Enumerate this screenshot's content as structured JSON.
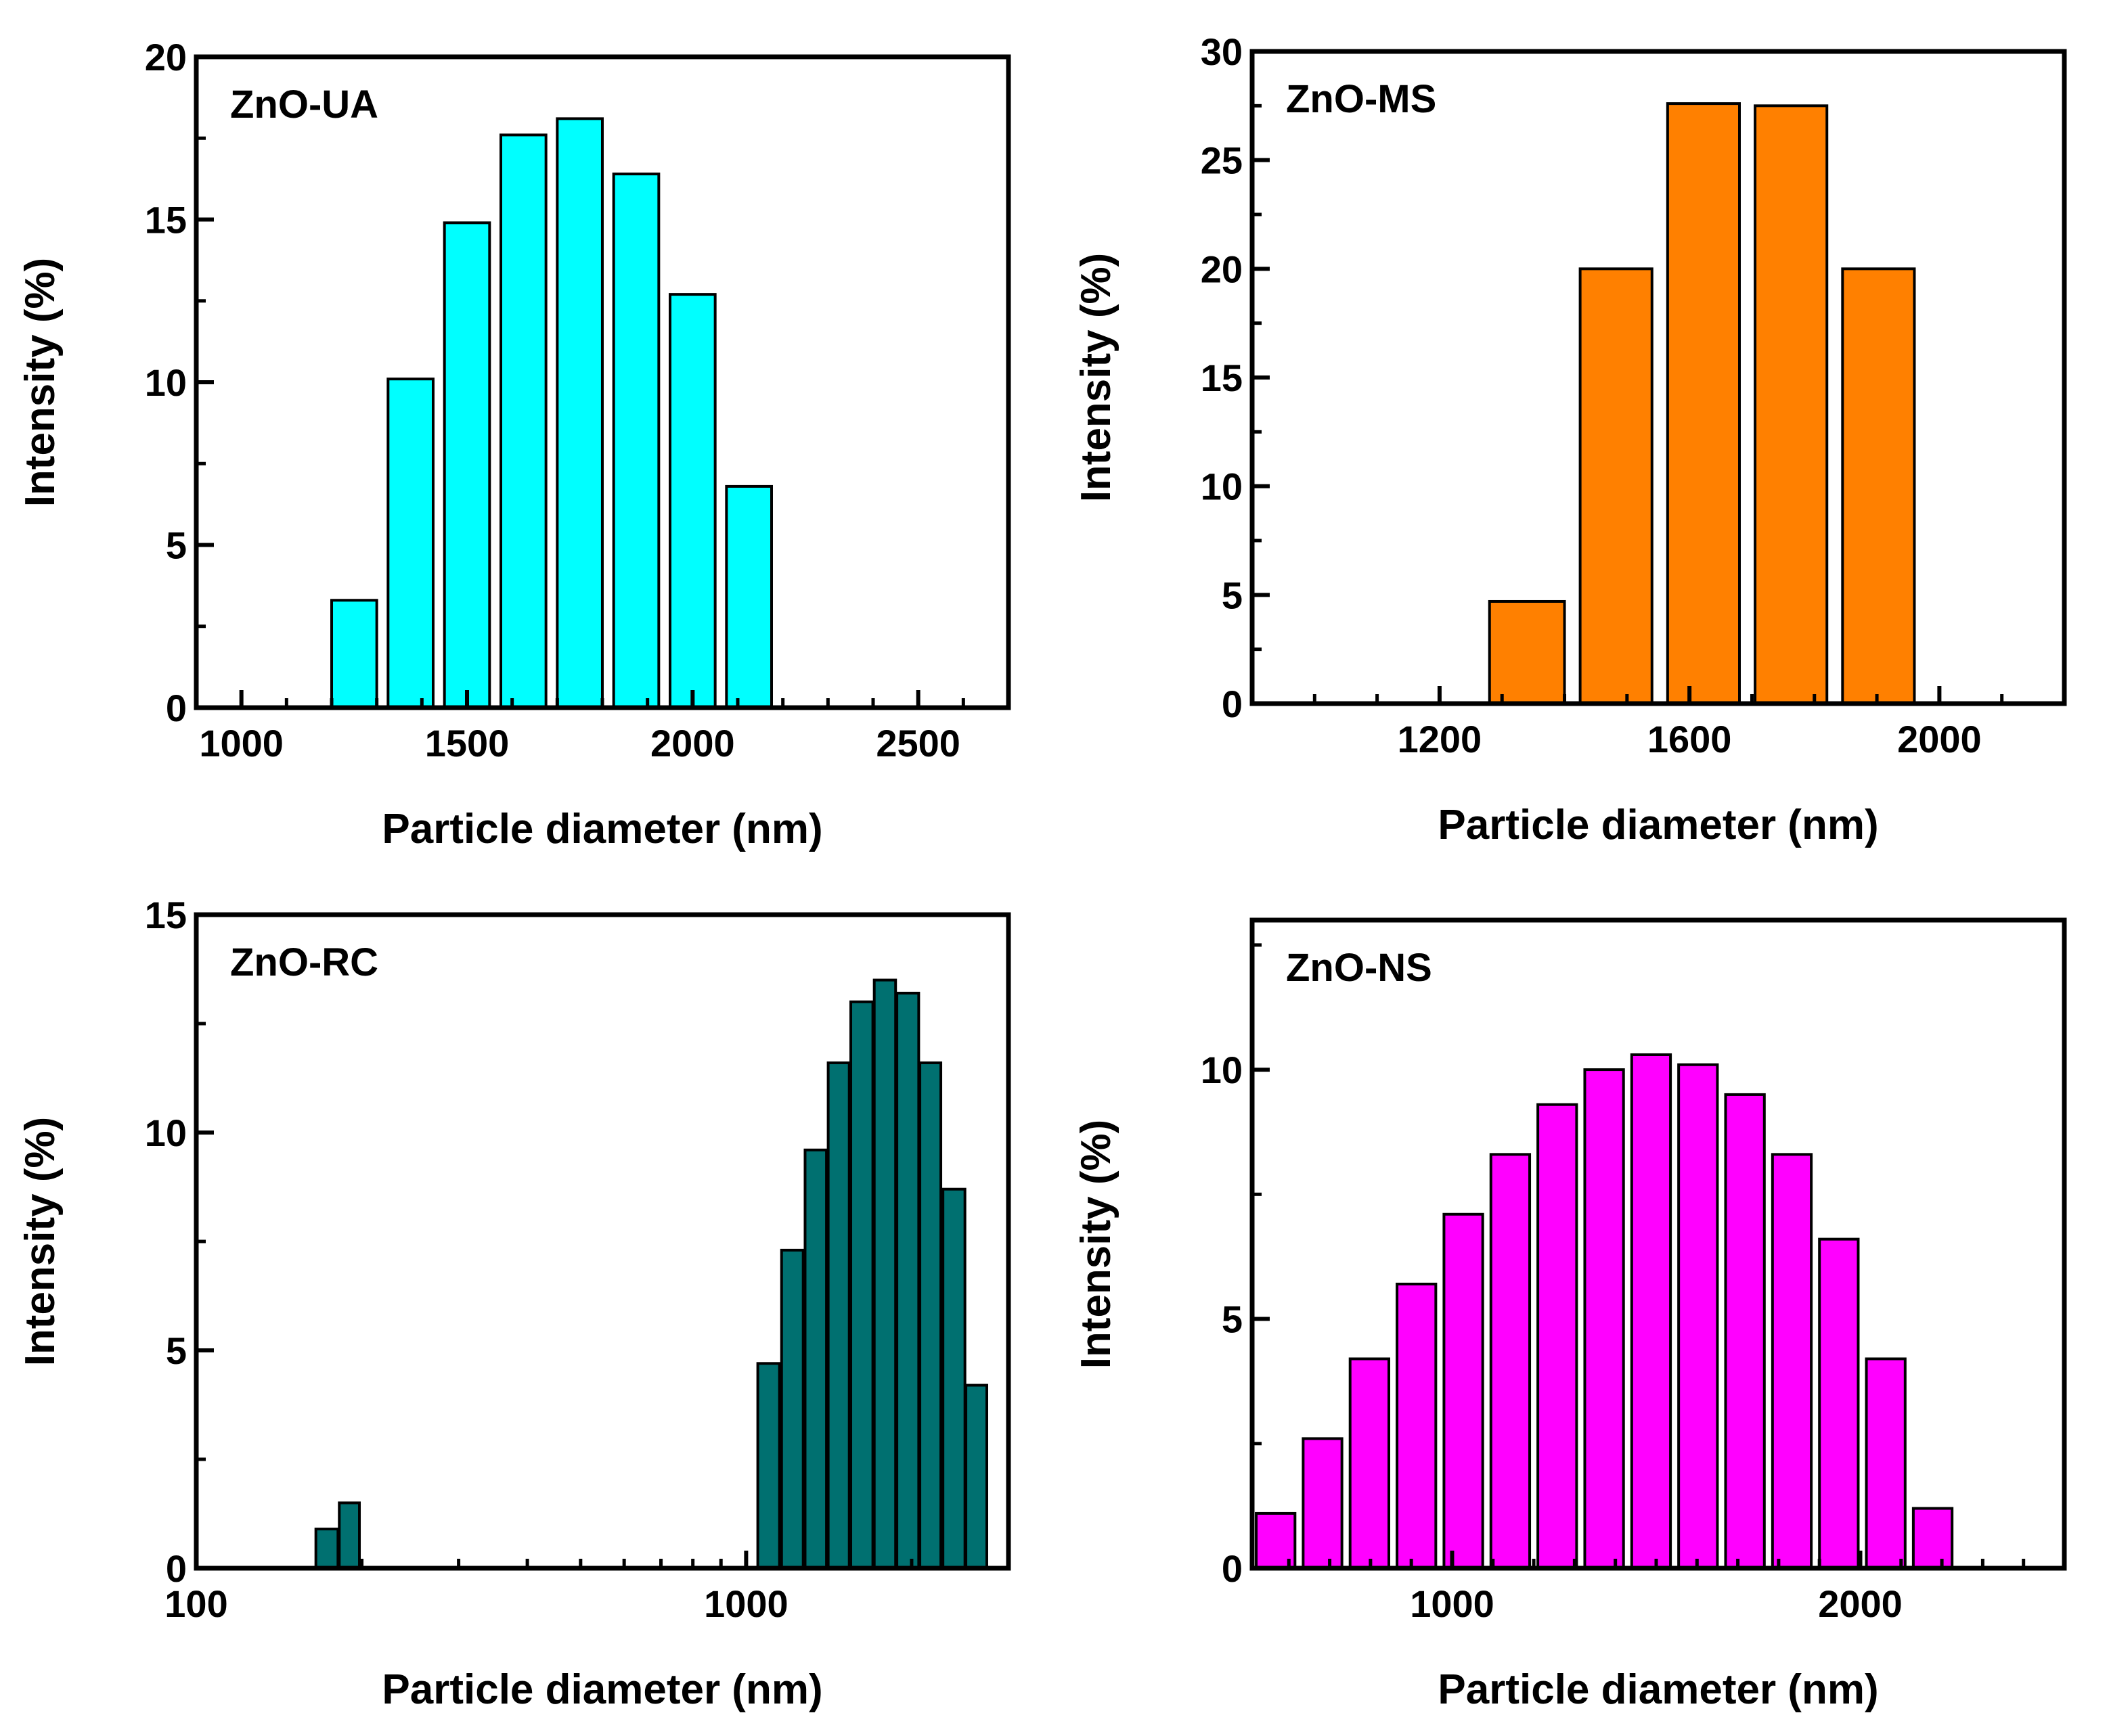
{
  "chart_data": [
    {
      "id": "ua",
      "type": "bar",
      "title": "ZnO-UA",
      "xlabel": "Particle diameter (nm)",
      "ylabel": "Intensity (%)",
      "xscale": "linear",
      "xlim": [
        900,
        2700
      ],
      "ylim": [
        0,
        20
      ],
      "xticks": [
        1000,
        1500,
        2000,
        2500
      ],
      "yticks": [
        0,
        5,
        10,
        15,
        20
      ],
      "color": "#00FFFF",
      "bars": [
        {
          "x0": 1200,
          "x1": 1300,
          "y": 3.3
        },
        {
          "x0": 1325,
          "x1": 1425,
          "y": 10.1
        },
        {
          "x0": 1450,
          "x1": 1550,
          "y": 14.9
        },
        {
          "x0": 1575,
          "x1": 1675,
          "y": 17.6
        },
        {
          "x0": 1700,
          "x1": 1800,
          "y": 18.1
        },
        {
          "x0": 1825,
          "x1": 1925,
          "y": 16.4
        },
        {
          "x0": 1950,
          "x1": 2050,
          "y": 12.7
        },
        {
          "x0": 2075,
          "x1": 2175,
          "y": 6.8
        }
      ]
    },
    {
      "id": "ms",
      "type": "bar",
      "title": "ZnO-MS",
      "xlabel": "Particle diameter (nm)",
      "ylabel": "Intensity (%)",
      "xscale": "linear",
      "xlim": [
        900,
        2200
      ],
      "ylim": [
        0,
        30
      ],
      "xticks": [
        1200,
        1600,
        2000
      ],
      "yticks": [
        0,
        5,
        10,
        15,
        20,
        25,
        30
      ],
      "color": "#FF8000",
      "bars": [
        {
          "x0": 1280,
          "x1": 1400,
          "y": 4.7
        },
        {
          "x0": 1425,
          "x1": 1540,
          "y": 20.0
        },
        {
          "x0": 1565,
          "x1": 1680,
          "y": 27.6
        },
        {
          "x0": 1705,
          "x1": 1820,
          "y": 27.5
        },
        {
          "x0": 1845,
          "x1": 1960,
          "y": 20.0
        }
      ]
    },
    {
      "id": "rc",
      "type": "bar",
      "title": "ZnO-RC",
      "xlabel": "Particle diameter (nm)",
      "ylabel": "Intensity (%)",
      "xscale": "log",
      "xlim": [
        100,
        3000
      ],
      "ylim": [
        0,
        15
      ],
      "xticks": [
        100,
        1000
      ],
      "yticks": [
        0,
        5,
        10,
        15
      ],
      "color": "#007070",
      "bars": [
        {
          "x0": 165,
          "x1": 181,
          "y": 0.9
        },
        {
          "x0": 182,
          "x1": 198,
          "y": 1.5
        },
        {
          "x0": 1050,
          "x1": 1150,
          "y": 4.7
        },
        {
          "x0": 1160,
          "x1": 1270,
          "y": 7.3
        },
        {
          "x0": 1280,
          "x1": 1400,
          "y": 9.6
        },
        {
          "x0": 1410,
          "x1": 1540,
          "y": 11.6
        },
        {
          "x0": 1550,
          "x1": 1700,
          "y": 13.0
        },
        {
          "x0": 1710,
          "x1": 1870,
          "y": 13.5
        },
        {
          "x0": 1880,
          "x1": 2060,
          "y": 13.2
        },
        {
          "x0": 2070,
          "x1": 2260,
          "y": 11.6
        },
        {
          "x0": 2280,
          "x1": 2500,
          "y": 8.7
        },
        {
          "x0": 2510,
          "x1": 2740,
          "y": 4.2
        }
      ]
    },
    {
      "id": "ns",
      "type": "bar",
      "title": "ZnO-NS",
      "xlabel": "Particle diameter (nm)",
      "ylabel": "Intensity (%)",
      "xscale": "linear",
      "xlim": [
        510,
        2500
      ],
      "ylim": [
        0,
        13
      ],
      "xticks": [
        1000,
        2000
      ],
      "yticks": [
        0,
        5,
        10
      ],
      "color": "#FF00FF",
      "bars": [
        {
          "x0": 520,
          "x1": 615,
          "y": 1.1
        },
        {
          "x0": 635,
          "x1": 730,
          "y": 2.6
        },
        {
          "x0": 750,
          "x1": 845,
          "y": 4.2
        },
        {
          "x0": 865,
          "x1": 960,
          "y": 5.7
        },
        {
          "x0": 980,
          "x1": 1075,
          "y": 7.1
        },
        {
          "x0": 1095,
          "x1": 1190,
          "y": 8.3
        },
        {
          "x0": 1210,
          "x1": 1305,
          "y": 9.3
        },
        {
          "x0": 1325,
          "x1": 1420,
          "y": 10.0
        },
        {
          "x0": 1440,
          "x1": 1535,
          "y": 10.3
        },
        {
          "x0": 1555,
          "x1": 1650,
          "y": 10.1
        },
        {
          "x0": 1670,
          "x1": 1765,
          "y": 9.5
        },
        {
          "x0": 1785,
          "x1": 1880,
          "y": 8.3
        },
        {
          "x0": 1900,
          "x1": 1995,
          "y": 6.6
        },
        {
          "x0": 2015,
          "x1": 2110,
          "y": 4.2
        },
        {
          "x0": 2130,
          "x1": 2225,
          "y": 1.2
        }
      ]
    }
  ]
}
